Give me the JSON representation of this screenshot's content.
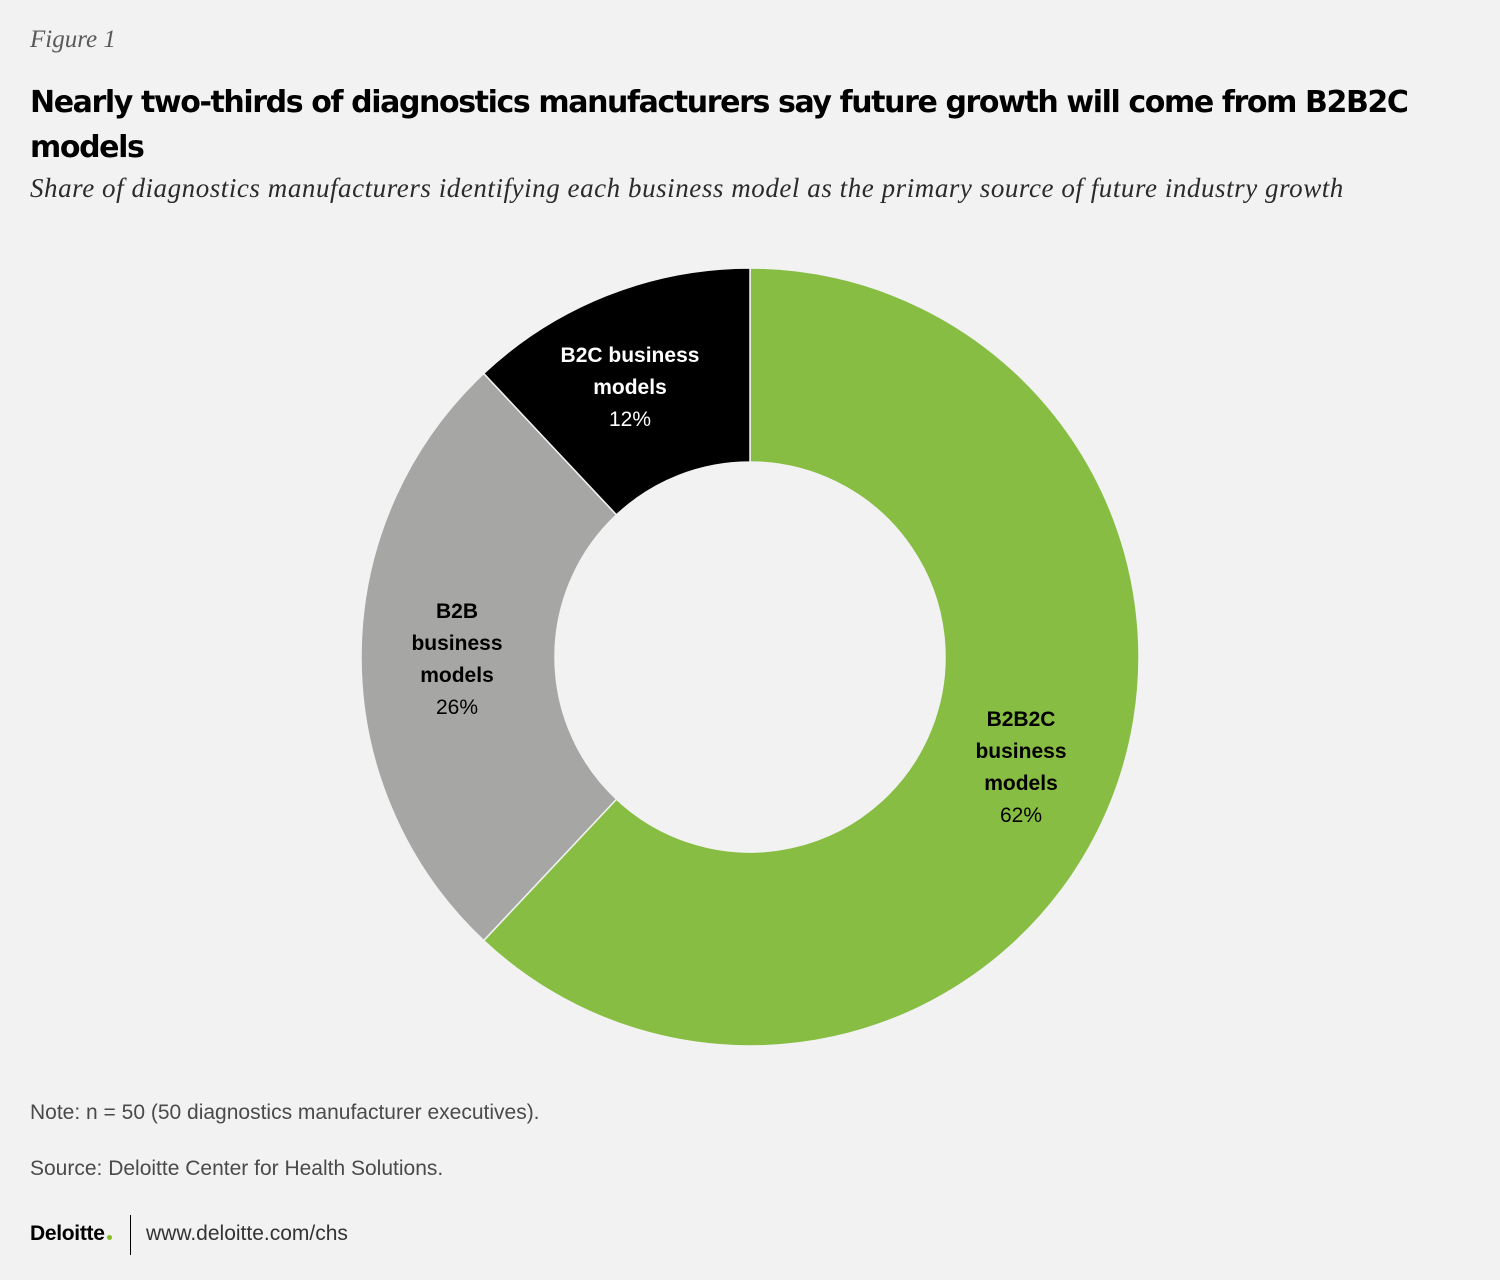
{
  "figure_label": "Figure 1",
  "title": "Nearly two-thirds of diagnostics manufacturers say future growth will come from B2B2C models",
  "subtitle": "Share of diagnostics manufacturers identifying each business model as the primary source of future industry growth",
  "chart_data": {
    "type": "pie",
    "variant": "donut",
    "title": "Nearly two-thirds of diagnostics manufacturers say future growth will come from B2B2C models",
    "subtitle": "Share of diagnostics manufacturers identifying each business model as the primary source of future industry growth",
    "unit": "%",
    "slices": [
      {
        "name": "B2B2C business models",
        "label_lines": [
          "B2B2C",
          "business",
          "models"
        ],
        "value": 62,
        "value_label": "62%",
        "color": "#86bd42"
      },
      {
        "name": "B2B business models",
        "label_lines": [
          "B2B",
          "business",
          "models"
        ],
        "value": 26,
        "value_label": "26%",
        "color": "#a6a6a5"
      },
      {
        "name": "B2C business models",
        "label_lines": [
          "B2C business",
          "models"
        ],
        "value": 12,
        "value_label": "12%",
        "color": "#000000"
      }
    ],
    "start_angle": "12 o'clock, clockwise",
    "legend": "none (direct slice labels)"
  },
  "footer": {
    "note": "Note: n = 50 (50 diagnostics manufacturer executives).",
    "source": "Source: Deloitte Center for Health Solutions.",
    "brand": "Deloitte",
    "brand_dot_color": "#86bc25",
    "url": "www.deloitte.com/chs"
  }
}
